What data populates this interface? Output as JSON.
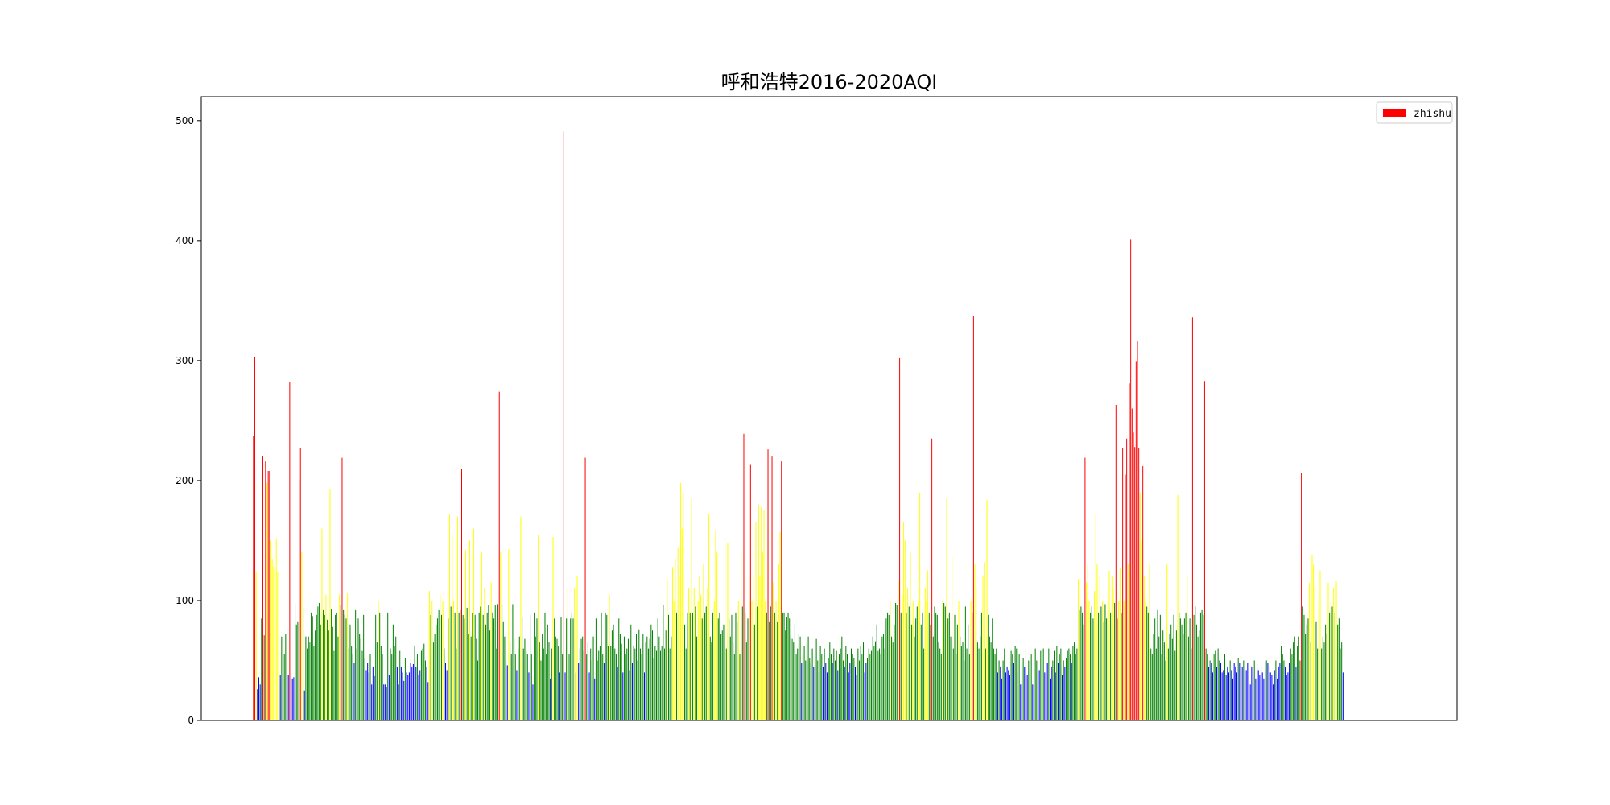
{
  "chart_data": {
    "type": "bar",
    "title": "呼和浩特2016-2020AQI",
    "xlabel": "",
    "ylabel": "",
    "ylim": [
      0,
      520
    ],
    "yticks": [
      0,
      100,
      200,
      300,
      400,
      500
    ],
    "x_range": [
      -70,
      1615
    ],
    "legend": {
      "label": "zhishu",
      "location": "top-right",
      "swatch_color": "#ff0000"
    },
    "color_bins": [
      {
        "min": 0,
        "max": 50,
        "color": "#0000ff"
      },
      {
        "min": 50,
        "max": 100,
        "color": "#008000"
      },
      {
        "min": 100,
        "max": 200,
        "color": "#ffff00"
      },
      {
        "min": 200,
        "max": 9999,
        "color": "#ff0000"
      }
    ],
    "series": [
      {
        "name": "zhishu",
        "x_start": 0,
        "values": [
          237,
          303,
          124,
          26,
          36,
          30,
          85,
          220,
          71,
          216,
          198,
          208,
          208,
          150,
          135,
          128,
          83,
          151,
          124,
          56,
          38,
          70,
          67,
          55,
          72,
          75,
          38,
          282,
          40,
          35,
          36,
          97,
          80,
          82,
          201,
          227,
          140,
          94,
          25,
          70,
          60,
          70,
          65,
          90,
          87,
          62,
          75,
          88,
          95,
          98,
          80,
          160,
          92,
          88,
          105,
          84,
          75,
          193,
          93,
          78,
          58,
          88,
          90,
          70,
          105,
          96,
          219,
          92,
          88,
          85,
          106,
          60,
          80,
          62,
          55,
          48,
          92,
          60,
          85,
          72,
          68,
          58,
          88,
          52,
          42,
          48,
          40,
          55,
          30,
          45,
          37,
          88,
          65,
          100,
          90,
          62,
          55,
          30,
          30,
          28,
          90,
          38,
          60,
          55,
          80,
          62,
          70,
          45,
          30,
          58,
          45,
          40,
          33,
          52,
          40,
          38,
          40,
          48,
          45,
          47,
          62,
          45,
          55,
          38,
          42,
          58,
          60,
          64,
          50,
          45,
          32,
          108,
          88,
          100,
          65,
          72,
          80,
          85,
          92,
          105,
          88,
          100,
          60,
          48,
          42,
          85,
          172,
          95,
          155,
          100,
          90,
          60,
          170,
          90,
          92,
          210,
          88,
          85,
          142,
          94,
          72,
          150,
          70,
          90,
          160,
          88,
          68,
          50,
          90,
          95,
          140,
          88,
          110,
          80,
          90,
          96,
          75,
          115,
          90,
          85,
          96,
          60,
          97,
          274,
          140,
          97,
          82,
          70,
          50,
          46,
          143,
          65,
          55,
          97,
          68,
          55,
          42,
          60,
          70,
          170,
          86,
          60,
          68,
          58,
          55,
          40,
          88,
          55,
          30,
          90,
          70,
          85,
          155,
          65,
          50,
          72,
          60,
          90,
          55,
          80,
          65,
          35,
          60,
          153,
          85,
          70,
          68,
          62,
          40,
          86,
          55,
          491,
          40,
          85,
          110,
          55,
          85,
          90,
          85,
          110,
          40,
          120,
          48,
          60,
          68,
          70,
          58,
          219,
          55,
          65,
          40,
          60,
          50,
          70,
          35,
          85,
          50,
          58,
          62,
          90,
          55,
          48,
          90,
          88,
          62,
          105,
          62,
          75,
          80,
          60,
          55,
          45,
          85,
          72,
          64,
          40,
          70,
          55,
          60,
          68,
          42,
          80,
          48,
          62,
          60,
          72,
          50,
          76,
          60,
          55,
          72,
          40,
          65,
          70,
          60,
          68,
          80,
          75,
          52,
          62,
          58,
          85,
          70,
          58,
          62,
          96,
          60,
          75,
          118,
          88,
          60,
          70,
          128,
          100,
          135,
          90,
          144,
          120,
          198,
          160,
          190,
          80,
          60,
          90,
          110,
          90,
          185,
          90,
          110,
          95,
          70,
          100,
          120,
          105,
          85,
          130,
          90,
          95,
          110,
          172,
          70,
          65,
          90,
          100,
          158,
          140,
          85,
          90,
          72,
          75,
          80,
          152,
          60,
          148,
          85,
          70,
          88,
          65,
          55,
          90,
          82,
          100,
          55,
          140,
          95,
          239,
          90,
          65,
          85,
          120,
          213,
          100,
          120,
          80,
          165,
          95,
          180,
          120,
          178,
          140,
          175,
          100,
          90,
          226,
          82,
          95,
          220,
          115,
          90,
          100,
          82,
          130,
          157,
          216,
          90,
          90,
          75,
          86,
          90,
          85,
          70,
          68,
          65,
          80,
          55,
          60,
          72,
          70,
          48,
          55,
          62,
          50,
          65,
          70,
          52,
          48,
          60,
          45,
          55,
          68,
          50,
          40,
          62,
          55,
          45,
          60,
          48,
          40,
          52,
          65,
          55,
          48,
          60,
          50,
          58,
          42,
          55,
          60,
          70,
          50,
          45,
          62,
          55,
          40,
          48,
          60,
          55,
          52,
          45,
          38,
          60,
          50,
          62,
          55,
          65,
          40,
          48,
          52,
          60,
          55,
          58,
          70,
          62,
          66,
          80,
          58,
          60,
          55,
          70,
          72,
          60,
          85,
          90,
          88,
          100,
          70,
          65,
          80,
          98,
          96,
          116,
          302,
          90,
          105,
          165,
          150,
          90,
          110,
          95,
          140,
          80,
          100,
          70,
          85,
          95,
          100,
          190,
          80,
          90,
          60,
          110,
          100,
          125,
          90,
          80,
          235,
          70,
          95,
          90,
          88,
          65,
          60,
          55,
          100,
          98,
          95,
          185,
          85,
          90,
          70,
          137,
          60,
          88,
          55,
          80,
          100,
          70,
          62,
          65,
          50,
          95,
          60,
          80,
          55,
          100,
          90,
          337,
          130,
          110,
          65,
          60,
          70,
          90,
          120,
          132,
          60,
          184,
          88,
          70,
          65,
          85,
          60,
          55,
          60,
          40,
          50,
          45,
          35,
          50,
          60,
          40,
          45,
          42,
          38,
          58,
          55,
          48,
          62,
          60,
          40,
          55,
          30,
          48,
          52,
          45,
          62,
          38,
          50,
          42,
          55,
          30,
          48,
          60,
          50,
          55,
          42,
          58,
          66,
          60,
          40,
          55,
          48,
          60,
          35,
          45,
          50,
          58,
          40,
          62,
          48,
          55,
          60,
          38,
          50,
          45,
          52,
          58,
          60,
          55,
          48,
          62,
          65,
          55,
          60,
          118,
          92,
          95,
          90,
          80,
          219,
          115,
          130,
          100,
          90,
          95,
          85,
          108,
          172,
          130,
          90,
          120,
          95,
          100,
          82,
          97,
          85,
          100,
          125,
          90,
          120,
          110,
          98,
          263,
          85,
          100,
          127,
          90,
          227,
          100,
          205,
          235,
          130,
          281,
          401,
          260,
          240,
          228,
          299,
          316,
          227,
          190,
          150,
          212,
          120,
          100,
          95,
          90,
          131,
          60,
          55,
          72,
          85,
          60,
          92,
          70,
          88,
          55,
          75,
          65,
          50,
          130,
          60,
          72,
          80,
          68,
          88,
          58,
          75,
          188,
          90,
          85,
          80,
          72,
          85,
          90,
          120,
          70,
          85,
          60,
          336,
          88,
          95,
          80,
          70,
          75,
          90,
          92,
          88,
          283,
          60,
          55,
          45,
          50,
          48,
          40,
          55,
          58,
          45,
          60,
          50,
          48,
          40,
          42,
          55,
          38,
          45,
          40,
          50,
          42,
          35,
          48,
          45,
          40,
          52,
          48,
          38,
          45,
          50,
          35,
          42,
          48,
          38,
          30,
          45,
          40,
          50,
          35,
          48,
          42,
          38,
          45,
          40,
          35,
          42,
          50,
          48,
          45,
          40,
          38,
          30,
          42,
          50,
          35,
          45,
          48,
          62,
          55,
          50,
          45,
          38,
          40,
          48,
          60,
          55,
          65,
          70,
          45,
          62,
          70,
          50,
          206,
          95,
          88,
          72,
          80,
          85,
          115,
          65,
          138,
          130,
          110,
          82,
          60,
          100,
          125,
          60,
          70,
          65,
          80,
          72,
          115,
          90,
          100,
          95,
          110,
          90,
          116,
          80,
          85,
          60,
          65,
          40
        ]
      }
    ]
  }
}
